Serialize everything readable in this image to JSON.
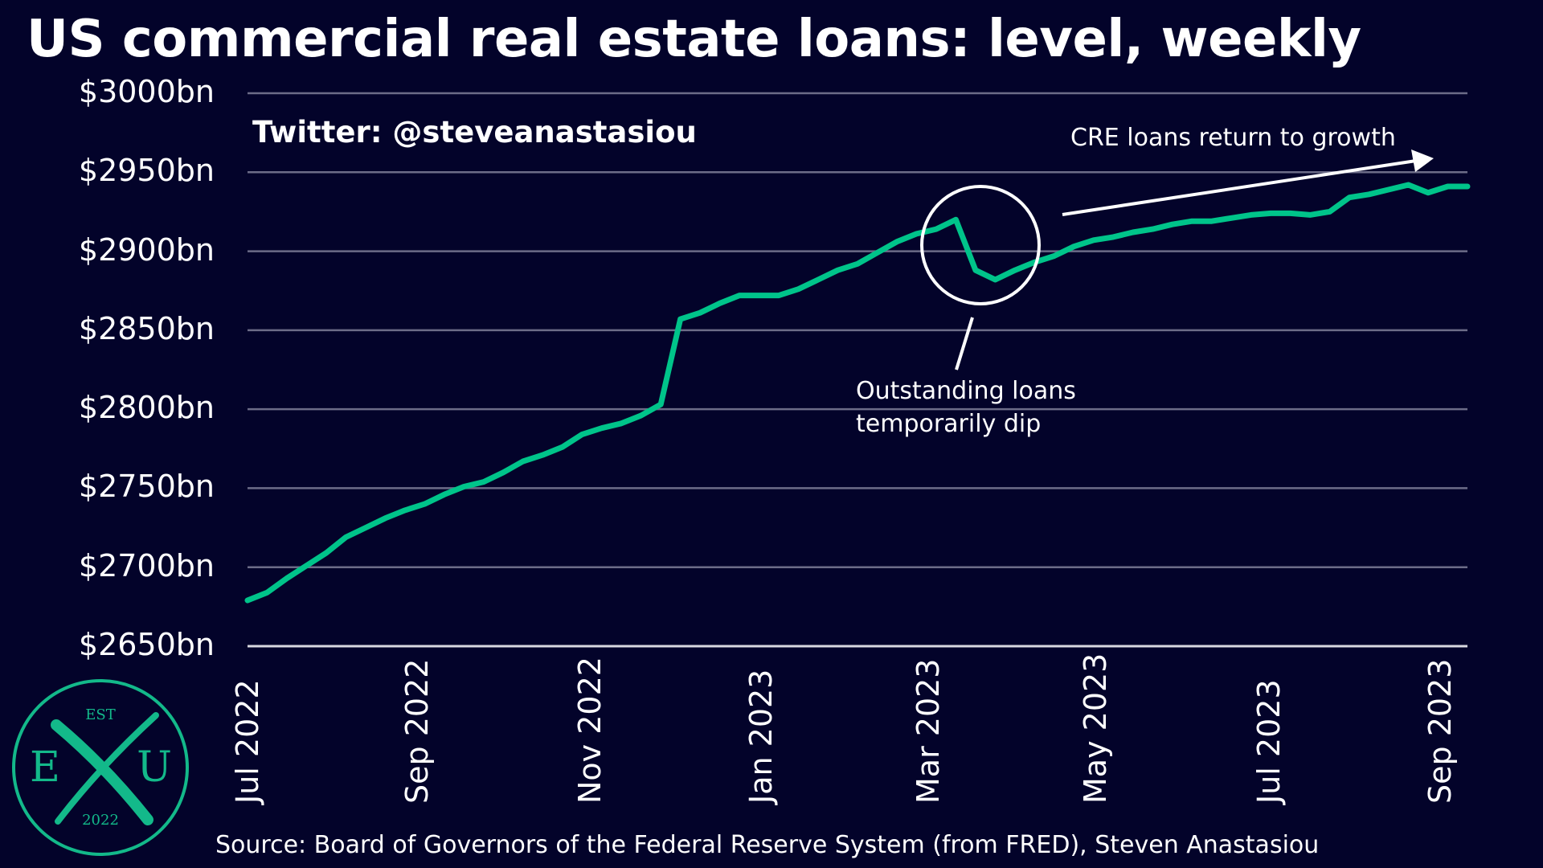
{
  "title": "US commercial real estate loans: level, weekly",
  "handle": "Twitter: @steveanastasiou",
  "source": "Source: Board of Governors of the Federal Reserve System (from FRED), Steven Anastasiou",
  "annotations": {
    "growth": "CRE loans return to growth",
    "dip_line1": "Outstanding  loans",
    "dip_line2": "temporarily dip"
  },
  "logo": {
    "top": "EST",
    "left": "E",
    "right": "U",
    "bottom": "2022"
  },
  "colors": {
    "background": "#03032a",
    "line": "#00c48a",
    "grid": "#6c6c88",
    "text": "#ffffff",
    "logo": "#13b98a"
  },
  "chart_data": {
    "type": "line",
    "title": "US commercial real estate loans: level, weekly",
    "ylabel": "",
    "xlabel": "",
    "ylim": [
      2650,
      3000
    ],
    "y_ticks": [
      2650,
      2700,
      2750,
      2800,
      2850,
      2900,
      2950,
      3000
    ],
    "y_tick_labels": [
      "$2650bn",
      "$2700bn",
      "$2750bn",
      "$2800bn",
      "$2850bn",
      "$2900bn",
      "$2950bn",
      "$3000bn"
    ],
    "x_tick_labels": [
      "Jul 2022",
      "Sep 2022",
      "Nov 2022",
      "Jan 2023",
      "Mar 2023",
      "May 2023",
      "Jul 2023",
      "Sep 2023"
    ],
    "x_tick_weeks": [
      0,
      8.6,
      17.4,
      26.1,
      34.6,
      43.1,
      51.9,
      60.6
    ],
    "grid": true,
    "legend": "none",
    "series": [
      {
        "values": [
          2679,
          2684,
          2693,
          2701,
          2709,
          2719,
          2725,
          2731,
          2736,
          2740,
          2746,
          2751,
          2754,
          2760,
          2767,
          2771,
          2776,
          2784,
          2788,
          2791,
          2796,
          2803,
          2857,
          2861,
          2867,
          2872,
          2872,
          2872,
          2876,
          2882,
          2888,
          2892,
          2899,
          2906,
          2911,
          2914,
          2920,
          2888,
          2882,
          2888,
          2893,
          2897,
          2903,
          2907,
          2909,
          2912,
          2914,
          2917,
          2919,
          2919,
          2921,
          2923,
          2924,
          2924,
          2923,
          2925,
          2934,
          2936,
          2939,
          2942,
          2937,
          2941,
          2941
        ]
      }
    ]
  }
}
